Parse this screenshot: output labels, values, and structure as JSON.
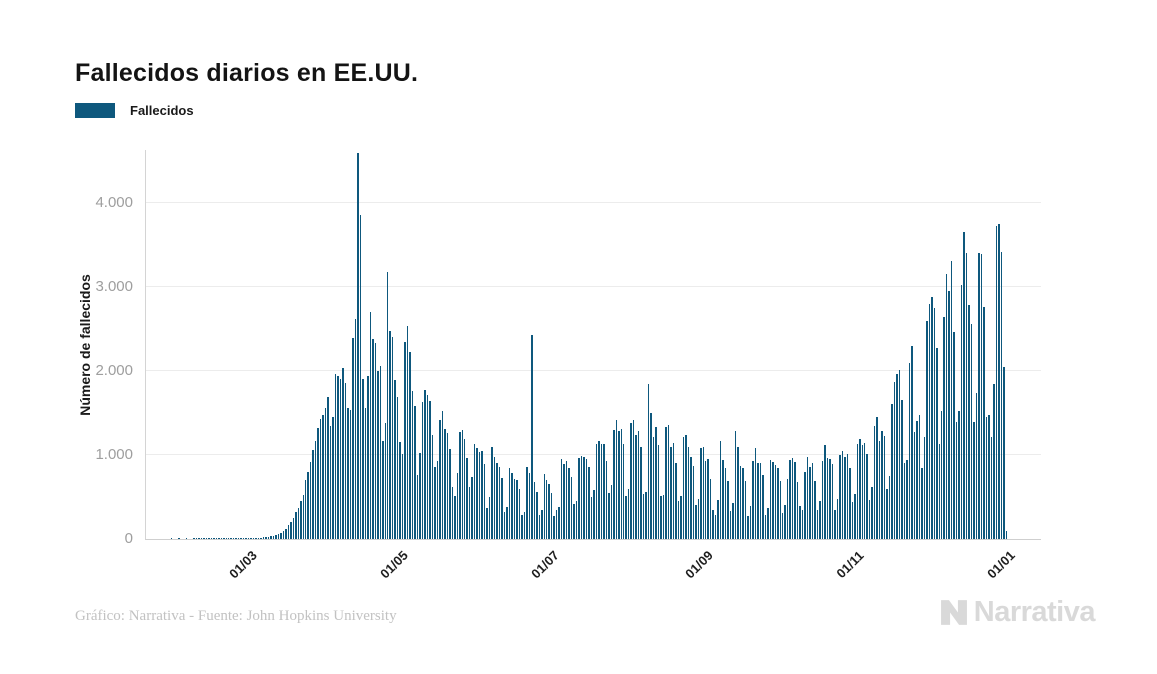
{
  "header": {
    "title": "Fallecidos diarios en EE.UU."
  },
  "legend": {
    "label": "Fallecidos",
    "swatch_color": "#0e587d"
  },
  "footer": {
    "credit": "Gráfico: Narrativa - Fuente: John Hopkins University",
    "logo_text": "Narrativa",
    "logo_color": "#d9d9d9"
  },
  "chart_data": {
    "type": "bar",
    "title": "Fallecidos diarios en EE.UU.",
    "series_name": "Fallecidos",
    "xlabel": "",
    "ylabel": "Número de fallecidos",
    "bar_color": "#0e587d",
    "grid": "horizontal",
    "legend_position": "top-left",
    "ylim": [
      0,
      4630
    ],
    "y_ticks": [
      {
        "value": 0,
        "label": "0"
      },
      {
        "value": 1000,
        "label": "1.000"
      },
      {
        "value": 2000,
        "label": "2.000"
      },
      {
        "value": 3000,
        "label": "3.000"
      },
      {
        "value": 4000,
        "label": "4.000"
      }
    ],
    "x_ticks": [
      {
        "index": 39,
        "label": "01/03"
      },
      {
        "index": 100,
        "label": "01/05"
      },
      {
        "index": 161,
        "label": "01/07"
      },
      {
        "index": 223,
        "label": "01/09"
      },
      {
        "index": 284,
        "label": "01/11"
      },
      {
        "index": 345,
        "label": "01/01"
      }
    ],
    "values": [
      0,
      0,
      0,
      0,
      0,
      0,
      0,
      0,
      0,
      0,
      1,
      0,
      0,
      1,
      0,
      0,
      1,
      0,
      0,
      2,
      1,
      1,
      2,
      1,
      1,
      2,
      2,
      3,
      2,
      3,
      3,
      4,
      5,
      4,
      6,
      5,
      8,
      7,
      9,
      6,
      4,
      7,
      9,
      11,
      10,
      14,
      17,
      21,
      26,
      29,
      30,
      41,
      49,
      57,
      73,
      97,
      121,
      163,
      201,
      252,
      319,
      374,
      452,
      521,
      698,
      803,
      912,
      1059,
      1164,
      1320,
      1430,
      1480,
      1560,
      1690,
      1340,
      1450,
      1970,
      1940,
      1910,
      2040,
      1860,
      1560,
      1540,
      2390,
      2620,
      4600,
      3860,
      1900,
      1560,
      1940,
      2700,
      2380,
      2330,
      2000,
      2060,
      1170,
      1380,
      3180,
      2480,
      2400,
      1890,
      1690,
      1150,
      1010,
      2350,
      2530,
      2230,
      1760,
      1580,
      760,
      1020,
      1630,
      1770,
      1720,
      1640,
      1240,
      860,
      930,
      1420,
      1520,
      1310,
      1260,
      1070,
      620,
      510,
      780,
      1270,
      1300,
      1190,
      970,
      620,
      740,
      1130,
      1080,
      1030,
      1050,
      890,
      370,
      500,
      1090,
      980,
      900,
      860,
      730,
      320,
      380,
      850,
      780,
      720,
      700,
      600,
      290,
      320,
      860,
      780,
      2430,
      680,
      560,
      290,
      340,
      770,
      700,
      660,
      550,
      270,
      350,
      380,
      950,
      890,
      930,
      850,
      740,
      420,
      450,
      970,
      990,
      980,
      950,
      860,
      500,
      580,
      1130,
      1170,
      1130,
      1130,
      930,
      550,
      640,
      1300,
      1420,
      1290,
      1310,
      1130,
      510,
      590,
      1380,
      1420,
      1240,
      1290,
      1090,
      540,
      560,
      1850,
      1500,
      1210,
      1330,
      1120,
      510,
      520,
      1330,
      1360,
      1090,
      1140,
      900,
      450,
      510,
      1210,
      1240,
      1100,
      980,
      870,
      400,
      480,
      1080,
      1090,
      930,
      950,
      720,
      340,
      290,
      460,
      1170,
      940,
      850,
      690,
      330,
      430,
      1290,
      1090,
      870,
      850,
      690,
      270,
      390,
      930,
      1080,
      910,
      900,
      760,
      290,
      370,
      940,
      920,
      880,
      850,
      690,
      310,
      410,
      720,
      940,
      960,
      920,
      680,
      390,
      350,
      800,
      980,
      860,
      900,
      690,
      340,
      450,
      930,
      1120,
      970,
      950,
      890,
      340,
      480,
      1000,
      1050,
      980,
      1010,
      840,
      440,
      540,
      1130,
      1190,
      1120,
      1140,
      1010,
      470,
      620,
      1350,
      1450,
      1170,
      1280,
      1230,
      600,
      750,
      1610,
      1870,
      1960,
      2010,
      1660,
      900,
      940,
      2100,
      2300,
      1270,
      1400,
      1480,
      850,
      1210,
      2600,
      2800,
      2880,
      2750,
      2270,
      1130,
      1520,
      2640,
      3150,
      2950,
      3310,
      2460,
      1390,
      1520,
      3020,
      3660,
      3410,
      2790,
      2560,
      1390,
      1740,
      3400,
      3390,
      2760,
      1450,
      1480,
      1210,
      1840,
      3730,
      3750,
      3420,
      2050,
      90
    ]
  }
}
